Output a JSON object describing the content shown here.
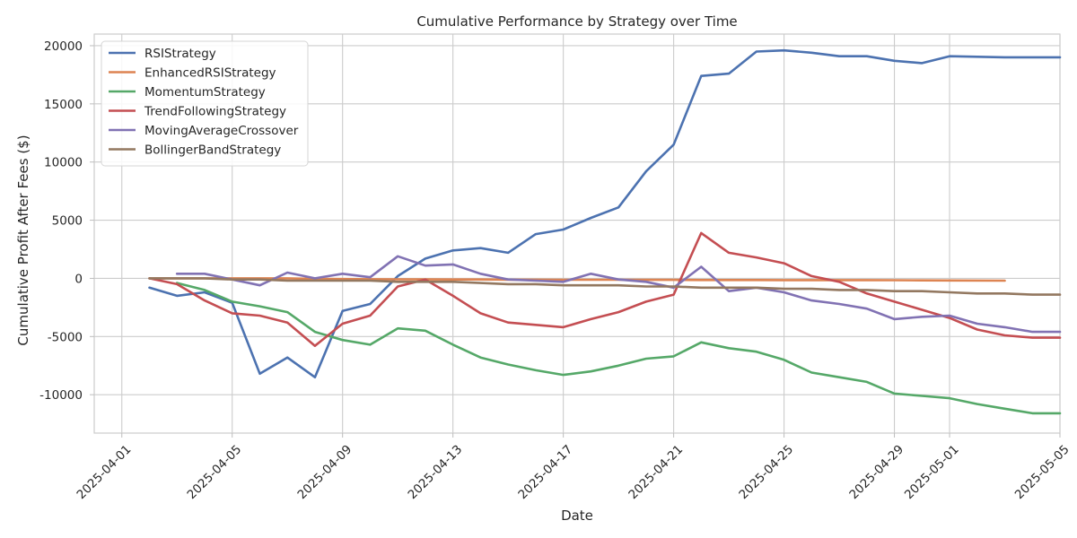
{
  "chart_data": {
    "type": "line",
    "title": "Cumulative Performance by Strategy over Time",
    "xlabel": "Date",
    "ylabel": "Cumulative Profit After Fees ($)",
    "xlim": [
      "2025-03-31",
      "2025-05-05"
    ],
    "ylim": [
      -13300,
      21000
    ],
    "x_ticks": [
      "2025-04-01",
      "2025-04-05",
      "2025-04-09",
      "2025-04-13",
      "2025-04-17",
      "2025-04-21",
      "2025-04-25",
      "2025-04-29",
      "2025-05-01",
      "2025-05-05"
    ],
    "y_ticks": [
      -10000,
      -5000,
      0,
      5000,
      10000,
      15000,
      20000
    ],
    "grid": true,
    "legend_position": "top-left",
    "series": [
      {
        "name": "RSIStrategy",
        "color": "#4c72b0",
        "x": [
          "2025-04-02",
          "2025-04-03",
          "2025-04-04",
          "2025-04-05",
          "2025-04-06",
          "2025-04-07",
          "2025-04-08",
          "2025-04-09",
          "2025-04-10",
          "2025-04-11",
          "2025-04-12",
          "2025-04-13",
          "2025-04-14",
          "2025-04-15",
          "2025-04-16",
          "2025-04-17",
          "2025-04-18",
          "2025-04-19",
          "2025-04-20",
          "2025-04-21",
          "2025-04-22",
          "2025-04-23",
          "2025-04-24",
          "2025-04-25",
          "2025-04-26",
          "2025-04-27",
          "2025-04-28",
          "2025-04-29",
          "2025-04-30",
          "2025-05-01",
          "2025-05-03",
          "2025-05-05"
        ],
        "values": [
          -800,
          -1500,
          -1200,
          -2100,
          -8200,
          -6800,
          -8500,
          -2800,
          -2200,
          200,
          1700,
          2400,
          2600,
          2200,
          3800,
          4200,
          5200,
          6100,
          9200,
          11500,
          17400,
          17600,
          19500,
          19600,
          19400,
          19100,
          19100,
          18700,
          18500,
          19100,
          19000,
          19000
        ]
      },
      {
        "name": "EnhancedRSIStrategy",
        "color": "#dd8452",
        "x": [
          "2025-04-02",
          "2025-04-03",
          "2025-04-04",
          "2025-04-05",
          "2025-04-06",
          "2025-04-07",
          "2025-04-08",
          "2025-04-09",
          "2025-04-10",
          "2025-04-11",
          "2025-04-12",
          "2025-04-13",
          "2025-04-14",
          "2025-04-15",
          "2025-04-16",
          "2025-04-17",
          "2025-04-18",
          "2025-04-19",
          "2025-04-20",
          "2025-04-21",
          "2025-04-22",
          "2025-04-23",
          "2025-04-24",
          "2025-04-25",
          "2025-04-26",
          "2025-04-27",
          "2025-04-28",
          "2025-04-29",
          "2025-04-30",
          "2025-05-01",
          "2025-05-03"
        ],
        "values": [
          0,
          0,
          0,
          0,
          0,
          0,
          -50,
          -60,
          -70,
          -80,
          -90,
          -100,
          -100,
          -110,
          -110,
          -120,
          -120,
          -120,
          -130,
          -130,
          -140,
          -140,
          -140,
          -150,
          -150,
          -150,
          -150,
          -160,
          -170,
          -180,
          -200
        ]
      },
      {
        "name": "MomentumStrategy",
        "color": "#55a868",
        "x": [
          "2025-04-03",
          "2025-04-04",
          "2025-04-05",
          "2025-04-06",
          "2025-04-07",
          "2025-04-08",
          "2025-04-09",
          "2025-04-10",
          "2025-04-11",
          "2025-04-12",
          "2025-04-13",
          "2025-04-14",
          "2025-04-15",
          "2025-04-16",
          "2025-04-17",
          "2025-04-18",
          "2025-04-19",
          "2025-04-20",
          "2025-04-21",
          "2025-04-22",
          "2025-04-23",
          "2025-04-24",
          "2025-04-25",
          "2025-04-26",
          "2025-04-27",
          "2025-04-28",
          "2025-04-29",
          "2025-04-30",
          "2025-05-01",
          "2025-05-02",
          "2025-05-03",
          "2025-05-04",
          "2025-05-05"
        ],
        "values": [
          -400,
          -1000,
          -2000,
          -2400,
          -2900,
          -4600,
          -5300,
          -5700,
          -4300,
          -4500,
          -5700,
          -6800,
          -7400,
          -7900,
          -8300,
          -8000,
          -7500,
          -6900,
          -6700,
          -5500,
          -6000,
          -6300,
          -7000,
          -8100,
          -8500,
          -8900,
          -9900,
          -10100,
          -10300,
          -10800,
          -11200,
          -11600,
          -11600
        ]
      },
      {
        "name": "TrendFollowingStrategy",
        "color": "#c44e52",
        "x": [
          "2025-04-02",
          "2025-04-03",
          "2025-04-04",
          "2025-04-05",
          "2025-04-06",
          "2025-04-07",
          "2025-04-08",
          "2025-04-09",
          "2025-04-10",
          "2025-04-11",
          "2025-04-12",
          "2025-04-13",
          "2025-04-14",
          "2025-04-15",
          "2025-04-16",
          "2025-04-17",
          "2025-04-18",
          "2025-04-19",
          "2025-04-20",
          "2025-04-21",
          "2025-04-22",
          "2025-04-23",
          "2025-04-24",
          "2025-04-25",
          "2025-04-26",
          "2025-04-27",
          "2025-04-28",
          "2025-04-29",
          "2025-04-30",
          "2025-05-01",
          "2025-05-02",
          "2025-05-03",
          "2025-05-04",
          "2025-05-05"
        ],
        "values": [
          0,
          -500,
          -1900,
          -3000,
          -3200,
          -3800,
          -5800,
          -3900,
          -3200,
          -700,
          -100,
          -1500,
          -3000,
          -3800,
          -4000,
          -4200,
          -3500,
          -2900,
          -2000,
          -1400,
          3900,
          2200,
          1800,
          1300,
          200,
          -300,
          -1300,
          -2000,
          -2700,
          -3400,
          -4400,
          -4900,
          -5100,
          -5100
        ]
      },
      {
        "name": "MovingAverageCrossover",
        "color": "#8172b3",
        "x": [
          "2025-04-03",
          "2025-04-04",
          "2025-04-05",
          "2025-04-06",
          "2025-04-07",
          "2025-04-08",
          "2025-04-09",
          "2025-04-10",
          "2025-04-11",
          "2025-04-12",
          "2025-04-13",
          "2025-04-14",
          "2025-04-15",
          "2025-04-16",
          "2025-04-17",
          "2025-04-18",
          "2025-04-19",
          "2025-04-20",
          "2025-04-21",
          "2025-04-22",
          "2025-04-23",
          "2025-04-24",
          "2025-04-25",
          "2025-04-26",
          "2025-04-27",
          "2025-04-28",
          "2025-04-29",
          "2025-04-30",
          "2025-05-01",
          "2025-05-02",
          "2025-05-03",
          "2025-05-04",
          "2025-05-05"
        ],
        "values": [
          400,
          400,
          -100,
          -600,
          500,
          0,
          400,
          100,
          1900,
          1100,
          1200,
          400,
          -100,
          -200,
          -300,
          400,
          -100,
          -300,
          -800,
          1000,
          -1100,
          -800,
          -1200,
          -1900,
          -2200,
          -2600,
          -3500,
          -3300,
          -3200,
          -3900,
          -4200,
          -4600,
          -4600
        ]
      },
      {
        "name": "BollingerBandStrategy",
        "color": "#937860",
        "x": [
          "2025-04-02",
          "2025-04-03",
          "2025-04-04",
          "2025-04-05",
          "2025-04-06",
          "2025-04-07",
          "2025-04-08",
          "2025-04-09",
          "2025-04-10",
          "2025-04-11",
          "2025-04-12",
          "2025-04-13",
          "2025-04-14",
          "2025-04-15",
          "2025-04-16",
          "2025-04-17",
          "2025-04-18",
          "2025-04-19",
          "2025-04-20",
          "2025-04-21",
          "2025-04-22",
          "2025-04-23",
          "2025-04-24",
          "2025-04-25",
          "2025-04-26",
          "2025-04-27",
          "2025-04-28",
          "2025-04-29",
          "2025-04-30",
          "2025-05-01",
          "2025-05-02",
          "2025-05-03",
          "2025-05-04",
          "2025-05-05"
        ],
        "values": [
          0,
          0,
          0,
          -100,
          -100,
          -200,
          -200,
          -200,
          -200,
          -300,
          -300,
          -300,
          -400,
          -500,
          -500,
          -600,
          -600,
          -600,
          -700,
          -700,
          -800,
          -800,
          -800,
          -900,
          -900,
          -1000,
          -1000,
          -1100,
          -1100,
          -1200,
          -1300,
          -1300,
          -1400,
          -1400
        ]
      }
    ]
  }
}
